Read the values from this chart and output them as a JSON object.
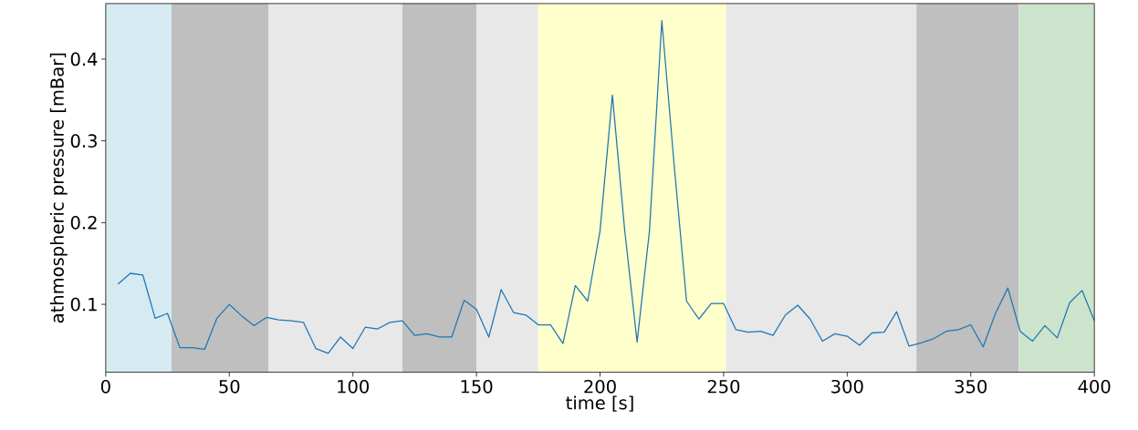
{
  "chart_data": {
    "type": "line",
    "xlabel": "time [s]",
    "ylabel": "athmospheric pressure [mBar]",
    "x": [
      5,
      10,
      15,
      20,
      25,
      30,
      35,
      40,
      45,
      50,
      55,
      60,
      65,
      70,
      75,
      80,
      85,
      90,
      95,
      100,
      105,
      110,
      115,
      120,
      125,
      130,
      135,
      140,
      145,
      150,
      155,
      160,
      165,
      170,
      175,
      180,
      185,
      190,
      195,
      200,
      205,
      210,
      215,
      220,
      225,
      230,
      235,
      240,
      245,
      250,
      255,
      260,
      265,
      270,
      275,
      280,
      285,
      290,
      295,
      300,
      305,
      310,
      315,
      320,
      325,
      330,
      335,
      340,
      345,
      350,
      355,
      360,
      365,
      370,
      375,
      380,
      385,
      390,
      395,
      400
    ],
    "series": [
      {
        "color": "#1f77b4",
        "values": [
          0.125,
          0.138,
          0.136,
          0.083,
          0.089,
          0.047,
          0.047,
          0.045,
          0.083,
          0.1,
          0.086,
          0.074,
          0.084,
          0.081,
          0.08,
          0.078,
          0.046,
          0.04,
          0.06,
          0.046,
          0.072,
          0.07,
          0.078,
          0.08,
          0.062,
          0.064,
          0.06,
          0.06,
          0.105,
          0.094,
          0.06,
          0.118,
          0.09,
          0.087,
          0.075,
          0.075,
          0.052,
          0.123,
          0.104,
          0.19,
          0.356,
          0.19,
          0.054,
          0.19,
          0.447,
          0.27,
          0.104,
          0.082,
          0.101,
          0.101,
          0.069,
          0.066,
          0.067,
          0.062,
          0.087,
          0.099,
          0.082,
          0.055,
          0.064,
          0.061,
          0.05,
          0.065,
          0.066,
          0.091,
          0.049,
          0.053,
          0.058,
          0.067,
          0.069,
          0.075,
          0.048,
          0.089,
          0.12,
          0.067,
          0.055,
          0.074,
          0.059,
          0.102,
          0.117,
          0.08
        ]
      }
    ],
    "xlim": [
      0,
      400
    ],
    "ylim": [
      0.017,
      0.468
    ],
    "xticks": [
      0,
      50,
      100,
      150,
      200,
      250,
      300,
      350,
      400
    ],
    "yticks": [
      0.1,
      0.2,
      0.3,
      0.4
    ],
    "marker": "none",
    "line_style": "solid",
    "bands": [
      {
        "axis": "x",
        "from": 0,
        "to": 26.6,
        "color": "#d6eaf2"
      },
      {
        "axis": "x",
        "from": 26.6,
        "to": 66,
        "color": "#bfbfbf"
      },
      {
        "axis": "x",
        "from": 66,
        "to": 120,
        "color": "#e8e8e8"
      },
      {
        "axis": "x",
        "from": 120,
        "to": 150,
        "color": "#bfbfbf"
      },
      {
        "axis": "x",
        "from": 150,
        "to": 175,
        "color": "#e8e8e8"
      },
      {
        "axis": "x",
        "from": 175,
        "to": 251,
        "color": "#ffffcc"
      },
      {
        "axis": "x",
        "from": 251,
        "to": 328,
        "color": "#e8e8e8"
      },
      {
        "axis": "x",
        "from": 328,
        "to": 369.4,
        "color": "#bfbfbf"
      },
      {
        "axis": "x",
        "from": 369.4,
        "to": 400,
        "color": "#cde4cc"
      }
    ]
  }
}
